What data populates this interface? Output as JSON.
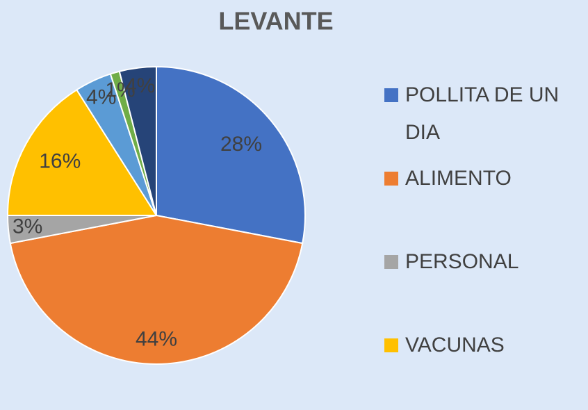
{
  "chart_data": {
    "type": "pie",
    "title": "LEVANTE",
    "categories": [
      "POLLITA DE UN DIA",
      "ALIMENTO",
      "PERSONAL",
      "VACUNAS",
      null,
      null,
      null
    ],
    "values": [
      28,
      44,
      3,
      16,
      4,
      1,
      4
    ],
    "value_labels": [
      "28%",
      "44%",
      "3%",
      "16%",
      "4%",
      "1%",
      "4%"
    ],
    "colors": [
      "#4472c4",
      "#ed7d31",
      "#a5a5a5",
      "#ffc000",
      "#5b9bd5",
      "#70ad47",
      "#264478"
    ]
  }
}
